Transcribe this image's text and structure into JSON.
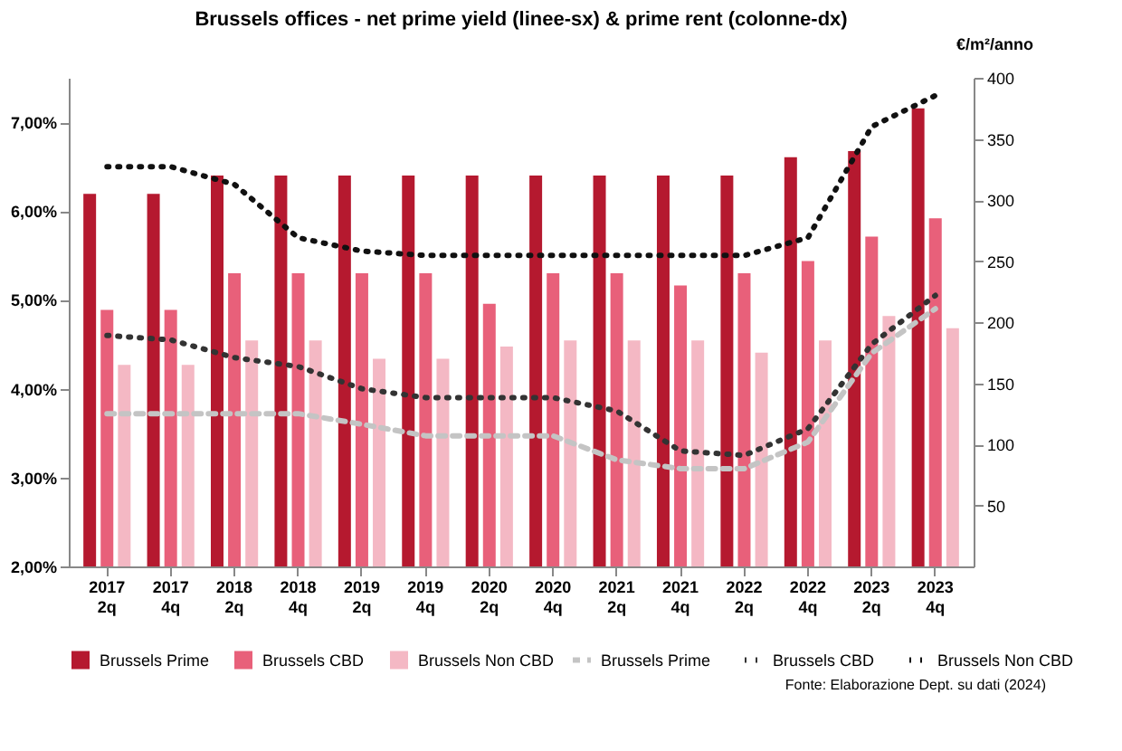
{
  "chart_data": {
    "type": "bar",
    "title": "Brussels offices - net prime yield (linee-sx) & prime rent (colonne-dx)",
    "categories": [
      "2017 2q",
      "2017 4q",
      "2018 2q",
      "2018 4q",
      "2019 2q",
      "2019 4q",
      "2020 2q",
      "2020 4q",
      "2021 2q",
      "2021 4q",
      "2022 2q",
      "2022 4q",
      "2023 2q",
      "2023 4q"
    ],
    "series": [
      {
        "name": "Brussels Prime",
        "axis": "y2",
        "color": "#b5192f",
        "values": [
          305,
          305,
          320,
          320,
          320,
          320,
          320,
          320,
          320,
          320,
          320,
          335,
          340,
          375
        ]
      },
      {
        "name": "Brussels CBD",
        "axis": "y2",
        "color": "#e8607a",
        "values": [
          210,
          210,
          240,
          240,
          240,
          240,
          215,
          240,
          240,
          230,
          240,
          250,
          270,
          285
        ]
      },
      {
        "name": "Brussels Non CBD",
        "axis": "y2",
        "color": "#f4b8c4",
        "values": [
          165,
          165,
          185,
          185,
          170,
          170,
          180,
          185,
          185,
          185,
          175,
          185,
          205,
          195
        ]
      },
      {
        "name": "Brussels Prime",
        "type": "line",
        "line_style": "dashed",
        "color": "#c4c4c4",
        "values": [
          3.72,
          3.72,
          3.72,
          3.72,
          3.6,
          3.47,
          3.47,
          3.47,
          3.2,
          3.1,
          3.1,
          3.4,
          4.4,
          4.9
        ]
      },
      {
        "name": "Brussels CBD",
        "type": "line",
        "line_style": "dotted",
        "color": "#333333",
        "values": [
          4.6,
          4.55,
          4.35,
          4.25,
          4.0,
          3.9,
          3.9,
          3.9,
          3.75,
          3.3,
          3.25,
          3.55,
          4.5,
          5.05
        ]
      },
      {
        "name": "Brussels Non CBD",
        "type": "line",
        "line_style": "dotted",
        "color": "#111111",
        "values": [
          6.5,
          6.5,
          6.3,
          5.7,
          5.55,
          5.5,
          5.5,
          5.5,
          5.5,
          5.5,
          5.5,
          5.7,
          6.95,
          7.3
        ]
      }
    ],
    "ylim": [
      2,
      7.5
    ],
    "yticks": [
      {
        "value": 2,
        "label": "2,00%"
      },
      {
        "value": 3,
        "label": "3,00%"
      },
      {
        "value": 4,
        "label": "4,00%"
      },
      {
        "value": 5,
        "label": "5,00%"
      },
      {
        "value": 6,
        "label": "6,00%"
      },
      {
        "value": 7,
        "label": "7,00%"
      }
    ],
    "y2lim": [
      0,
      400
    ],
    "y2ticks": [
      50,
      100,
      150,
      200,
      250,
      300,
      350,
      400
    ],
    "y2label": "€/m²/anno",
    "legend": "bottom",
    "grid": false,
    "annotations": [
      "Fonte: Elaborazione Dept. su dati (2024)"
    ]
  }
}
